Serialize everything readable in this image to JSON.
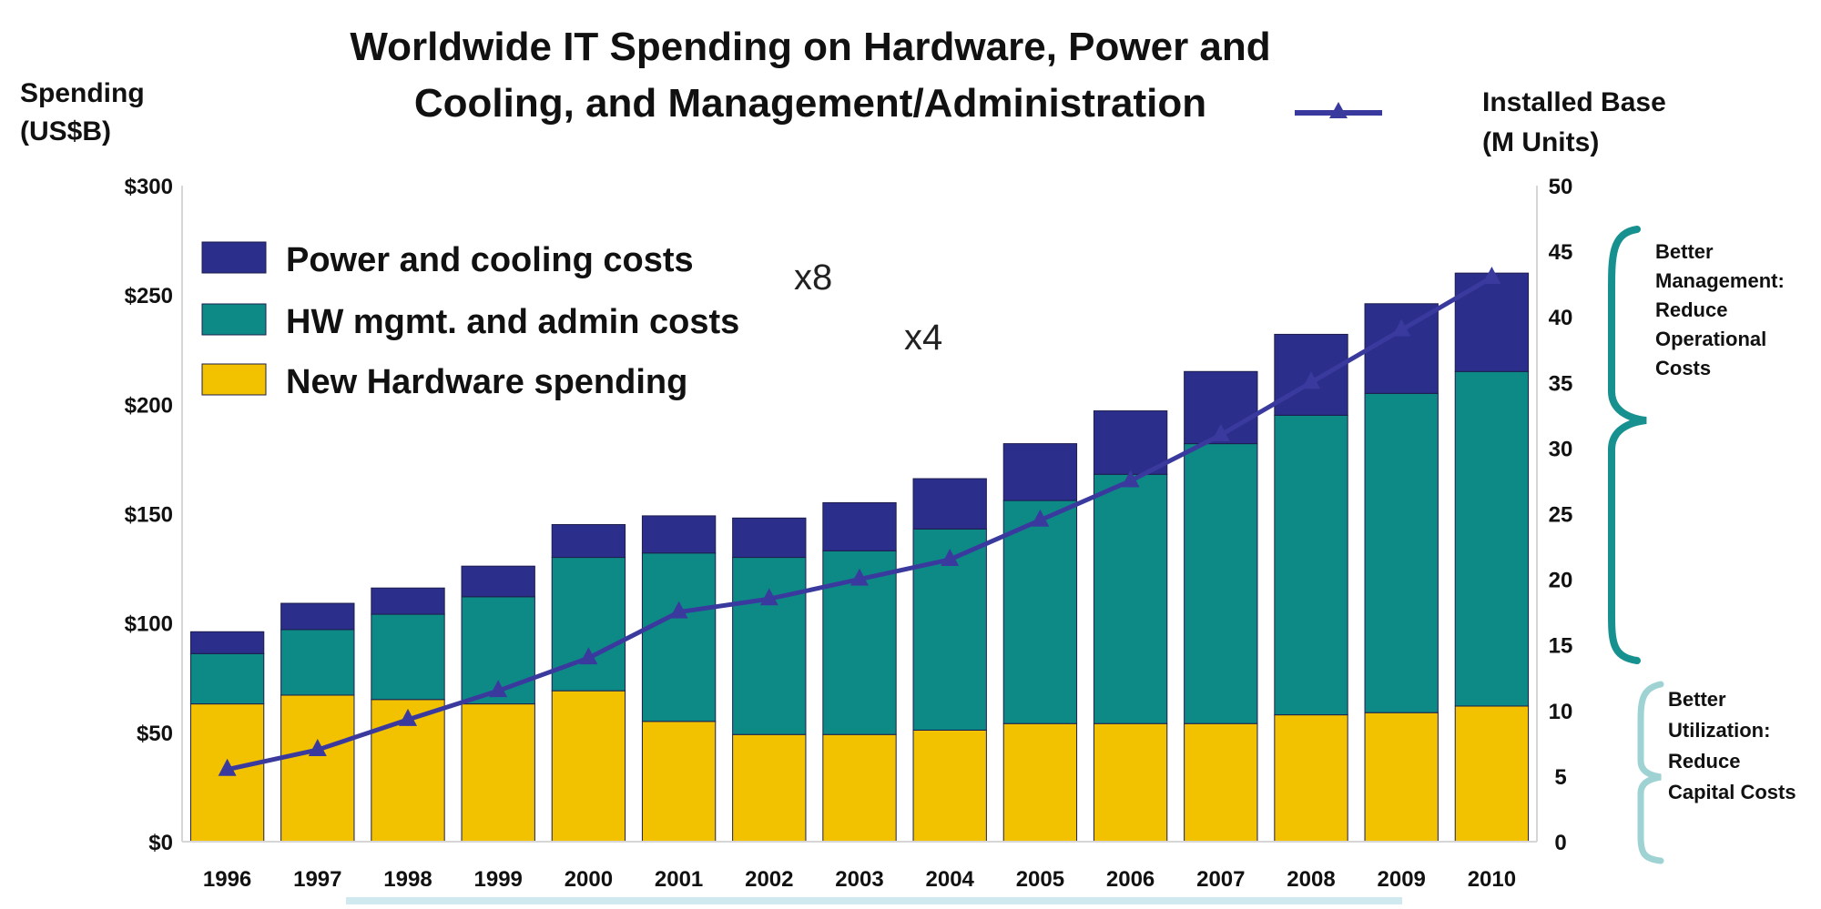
{
  "chart_data": {
    "type": "bar",
    "stacked": true,
    "title_lines": [
      "Worldwide IT Spending on Hardware, Power and",
      "Cooling, and Management/Administration"
    ],
    "ylabel_lines": [
      "Spending",
      "(US$B)"
    ],
    "y2label_lines": [
      "Installed Base",
      "(M Units)"
    ],
    "ylim": [
      0,
      300
    ],
    "y2lim": [
      0,
      50
    ],
    "yticks": [
      "$0",
      "$50",
      "$100",
      "$150",
      "$200",
      "$250",
      "$300"
    ],
    "y2ticks": [
      "0",
      "5",
      "10",
      "15",
      "20",
      "25",
      "30",
      "35",
      "40",
      "45",
      "50"
    ],
    "categories": [
      "1996",
      "1997",
      "1998",
      "1999",
      "2000",
      "2001",
      "2002",
      "2003",
      "2004",
      "2005",
      "2006",
      "2007",
      "2008",
      "2009",
      "2010"
    ],
    "series": [
      {
        "name": "New Hardware spending",
        "color": "#F2C200",
        "values": [
          63,
          67,
          65,
          63,
          69,
          55,
          49,
          49,
          51,
          54,
          54,
          54,
          58,
          59,
          62
        ]
      },
      {
        "name": "HW mgmt. and admin costs",
        "color": "#0E8A86",
        "values": [
          23,
          30,
          39,
          49,
          61,
          77,
          81,
          84,
          92,
          102,
          114,
          128,
          137,
          146,
          153
        ]
      },
      {
        "name": "Power and cooling costs",
        "color": "#2C2E8C",
        "values": [
          10,
          12,
          12,
          14,
          15,
          17,
          18,
          22,
          23,
          26,
          29,
          33,
          37,
          41,
          45
        ]
      }
    ],
    "line_series": {
      "axis": "right",
      "color": "#3A3A9E",
      "values": [
        5.5,
        7,
        9.3,
        11.5,
        14,
        17.5,
        18.5,
        20,
        21.5,
        24.5,
        27.5,
        31,
        35,
        39,
        43
      ]
    },
    "legend_order": [
      2,
      1,
      0
    ],
    "legend_position": "top-left",
    "annotations": {
      "power_multiplier": "x8",
      "mgmt_multiplier": "x4",
      "brace_top": [
        "Better",
        "Management:",
        "Reduce",
        "Operational",
        "Costs"
      ],
      "brace_bottom": [
        "Better",
        "Utilization:",
        "Reduce",
        "Capital Costs"
      ]
    },
    "grid": false
  }
}
